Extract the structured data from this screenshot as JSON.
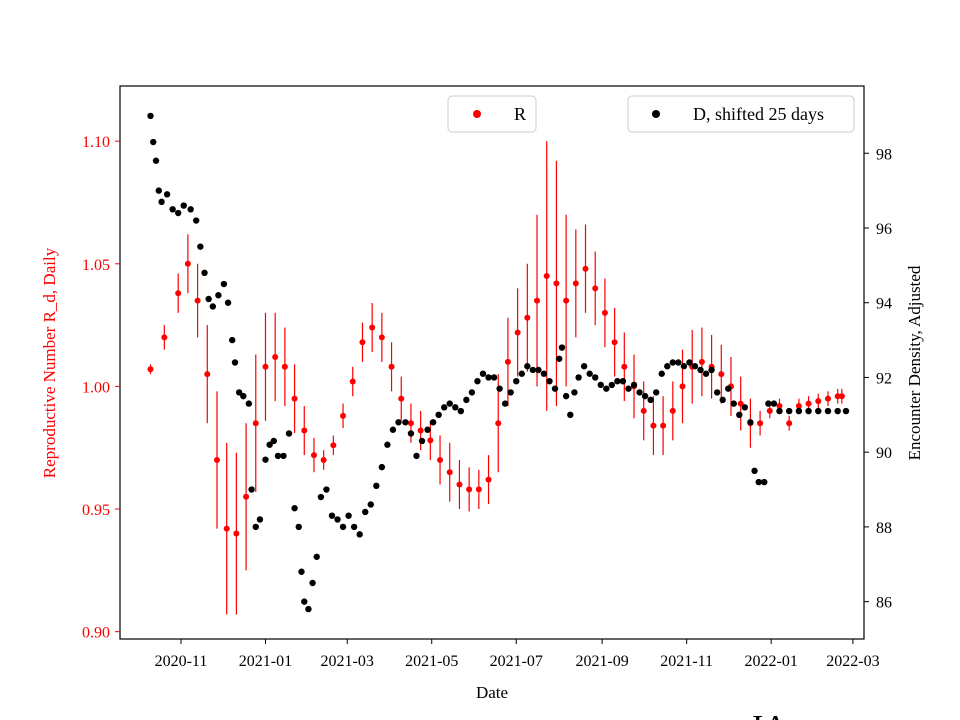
{
  "chart_data": {
    "type": "scatter",
    "xlabel": "Date",
    "x_ticks": [
      "2020-11",
      "2021-01",
      "2021-03",
      "2021-05",
      "2021-07",
      "2021-09",
      "2021-11",
      "2022-01",
      "2022-03"
    ],
    "x_range": [
      "2020-09-18",
      "2022-03-09"
    ],
    "left_axis": {
      "label": "Reproductive Number R_d, Daily",
      "color": "#ff0000",
      "ticks": [
        "0.90",
        "0.95",
        "1.00",
        "1.05",
        "1.10"
      ],
      "range": [
        0.897,
        1.1225
      ]
    },
    "right_axis": {
      "label": "Encounter Density, Adjusted",
      "color": "#000000",
      "ticks": [
        "86",
        "88",
        "90",
        "92",
        "94",
        "96",
        "98"
      ],
      "range": [
        85.0,
        99.8
      ]
    },
    "series": [
      {
        "name": "R",
        "axis": "left",
        "color": "#ff0000",
        "marker": "dot with error bars",
        "points": [
          [
            "2020-10-10",
            1.007,
            0.002
          ],
          [
            "2020-10-20",
            1.02,
            0.005
          ],
          [
            "2020-10-30",
            1.038,
            0.008
          ],
          [
            "2020-11-06",
            1.05,
            0.012
          ],
          [
            "2020-11-13",
            1.035,
            0.015
          ],
          [
            "2020-11-20",
            1.005,
            0.02
          ],
          [
            "2020-11-27",
            0.97,
            0.028
          ],
          [
            "2020-12-04",
            0.942,
            0.035
          ],
          [
            "2020-12-11",
            0.94,
            0.033
          ],
          [
            "2020-12-18",
            0.955,
            0.03
          ],
          [
            "2020-12-25",
            0.985,
            0.028
          ],
          [
            "2021-01-01",
            1.008,
            0.022
          ],
          [
            "2021-01-08",
            1.012,
            0.018
          ],
          [
            "2021-01-15",
            1.008,
            0.016
          ],
          [
            "2021-01-22",
            0.995,
            0.014
          ],
          [
            "2021-01-29",
            0.982,
            0.01
          ],
          [
            "2021-02-05",
            0.972,
            0.007
          ],
          [
            "2021-02-12",
            0.97,
            0.004
          ],
          [
            "2021-02-19",
            0.976,
            0.004
          ],
          [
            "2021-02-26",
            0.988,
            0.005
          ],
          [
            "2021-03-05",
            1.002,
            0.006
          ],
          [
            "2021-03-12",
            1.018,
            0.008
          ],
          [
            "2021-03-19",
            1.024,
            0.01
          ],
          [
            "2021-03-26",
            1.02,
            0.01
          ],
          [
            "2021-04-02",
            1.008,
            0.01
          ],
          [
            "2021-04-09",
            0.995,
            0.009
          ],
          [
            "2021-04-16",
            0.985,
            0.008
          ],
          [
            "2021-04-23",
            0.982,
            0.008
          ],
          [
            "2021-04-30",
            0.978,
            0.008
          ],
          [
            "2021-05-07",
            0.97,
            0.01
          ],
          [
            "2021-05-14",
            0.965,
            0.012
          ],
          [
            "2021-05-21",
            0.96,
            0.01
          ],
          [
            "2021-05-28",
            0.958,
            0.009
          ],
          [
            "2021-06-04",
            0.958,
            0.008
          ],
          [
            "2021-06-11",
            0.962,
            0.01
          ],
          [
            "2021-06-18",
            0.985,
            0.02
          ],
          [
            "2021-06-25",
            1.01,
            0.018
          ],
          [
            "2021-07-02",
            1.022,
            0.018
          ],
          [
            "2021-07-09",
            1.028,
            0.022
          ],
          [
            "2021-07-16",
            1.035,
            0.035
          ],
          [
            "2021-07-23",
            1.045,
            0.055
          ],
          [
            "2021-07-30",
            1.042,
            0.05
          ],
          [
            "2021-08-06",
            1.035,
            0.035
          ],
          [
            "2021-08-13",
            1.042,
            0.022
          ],
          [
            "2021-08-20",
            1.048,
            0.018
          ],
          [
            "2021-08-27",
            1.04,
            0.015
          ],
          [
            "2021-09-03",
            1.03,
            0.014
          ],
          [
            "2021-09-10",
            1.018,
            0.014
          ],
          [
            "2021-09-17",
            1.008,
            0.014
          ],
          [
            "2021-09-24",
            1.0,
            0.013
          ],
          [
            "2021-10-01",
            0.99,
            0.012
          ],
          [
            "2021-10-08",
            0.984,
            0.012
          ],
          [
            "2021-10-15",
            0.984,
            0.012
          ],
          [
            "2021-10-22",
            0.99,
            0.012
          ],
          [
            "2021-10-29",
            1.0,
            0.015
          ],
          [
            "2021-11-05",
            1.008,
            0.015
          ],
          [
            "2021-11-12",
            1.01,
            0.014
          ],
          [
            "2021-11-19",
            1.008,
            0.013
          ],
          [
            "2021-11-26",
            1.005,
            0.012
          ],
          [
            "2021-12-03",
            1.0,
            0.012
          ],
          [
            "2021-12-10",
            0.993,
            0.011
          ],
          [
            "2021-12-17",
            0.985,
            0.01
          ],
          [
            "2021-12-24",
            0.985,
            0.005
          ],
          [
            "2021-12-31",
            0.99,
            0.003
          ],
          [
            "2022-01-07",
            0.992,
            0.003
          ],
          [
            "2022-01-14",
            0.985,
            0.003
          ],
          [
            "2022-01-21",
            0.992,
            0.003
          ],
          [
            "2022-01-28",
            0.993,
            0.003
          ],
          [
            "2022-02-04",
            0.994,
            0.003
          ],
          [
            "2022-02-11",
            0.995,
            0.003
          ],
          [
            "2022-02-18",
            0.996,
            0.003
          ],
          [
            "2022-02-21",
            0.996,
            0.003
          ]
        ]
      },
      {
        "name": "D, shifted 25 days",
        "axis": "right",
        "color": "#000000",
        "marker": "dot",
        "points": [
          [
            "2020-10-10",
            99.0
          ],
          [
            "2020-10-12",
            98.3
          ],
          [
            "2020-10-14",
            97.8
          ],
          [
            "2020-10-16",
            97.0
          ],
          [
            "2020-10-18",
            96.7
          ],
          [
            "2020-10-22",
            96.9
          ],
          [
            "2020-10-26",
            96.5
          ],
          [
            "2020-10-30",
            96.4
          ],
          [
            "2020-11-03",
            96.6
          ],
          [
            "2020-11-08",
            96.5
          ],
          [
            "2020-11-12",
            96.2
          ],
          [
            "2020-11-15",
            95.5
          ],
          [
            "2020-11-18",
            94.8
          ],
          [
            "2020-11-21",
            94.1
          ],
          [
            "2020-11-24",
            93.9
          ],
          [
            "2020-11-28",
            94.2
          ],
          [
            "2020-12-02",
            94.5
          ],
          [
            "2020-12-05",
            94.0
          ],
          [
            "2020-12-08",
            93.0
          ],
          [
            "2020-12-10",
            92.4
          ],
          [
            "2020-12-13",
            91.6
          ],
          [
            "2020-12-16",
            91.5
          ],
          [
            "2020-12-20",
            91.3
          ],
          [
            "2020-12-22",
            89.0
          ],
          [
            "2020-12-25",
            88.0
          ],
          [
            "2020-12-28",
            88.2
          ],
          [
            "2021-01-01",
            89.8
          ],
          [
            "2021-01-04",
            90.2
          ],
          [
            "2021-01-07",
            90.3
          ],
          [
            "2021-01-10",
            89.9
          ],
          [
            "2021-01-14",
            89.9
          ],
          [
            "2021-01-18",
            90.5
          ],
          [
            "2021-01-22",
            88.5
          ],
          [
            "2021-01-25",
            88.0
          ],
          [
            "2021-01-27",
            86.8
          ],
          [
            "2021-01-29",
            86.0
          ],
          [
            "2021-02-01",
            85.8
          ],
          [
            "2021-02-04",
            86.5
          ],
          [
            "2021-02-07",
            87.2
          ],
          [
            "2021-02-10",
            88.8
          ],
          [
            "2021-02-14",
            89.0
          ],
          [
            "2021-02-18",
            88.3
          ],
          [
            "2021-02-22",
            88.2
          ],
          [
            "2021-02-26",
            88.0
          ],
          [
            "2021-03-02",
            88.3
          ],
          [
            "2021-03-06",
            88.0
          ],
          [
            "2021-03-10",
            87.8
          ],
          [
            "2021-03-14",
            88.4
          ],
          [
            "2021-03-18",
            88.6
          ],
          [
            "2021-03-22",
            89.1
          ],
          [
            "2021-03-26",
            89.6
          ],
          [
            "2021-03-30",
            90.2
          ],
          [
            "2021-04-03",
            90.6
          ],
          [
            "2021-04-07",
            90.8
          ],
          [
            "2021-04-12",
            90.8
          ],
          [
            "2021-04-16",
            90.5
          ],
          [
            "2021-04-20",
            89.9
          ],
          [
            "2021-04-24",
            90.3
          ],
          [
            "2021-04-28",
            90.6
          ],
          [
            "2021-05-02",
            90.8
          ],
          [
            "2021-05-06",
            91.0
          ],
          [
            "2021-05-10",
            91.2
          ],
          [
            "2021-05-14",
            91.3
          ],
          [
            "2021-05-18",
            91.2
          ],
          [
            "2021-05-22",
            91.1
          ],
          [
            "2021-05-26",
            91.4
          ],
          [
            "2021-05-30",
            91.6
          ],
          [
            "2021-06-03",
            91.9
          ],
          [
            "2021-06-07",
            92.1
          ],
          [
            "2021-06-11",
            92.0
          ],
          [
            "2021-06-15",
            92.0
          ],
          [
            "2021-06-19",
            91.7
          ],
          [
            "2021-06-23",
            91.3
          ],
          [
            "2021-06-27",
            91.6
          ],
          [
            "2021-07-01",
            91.9
          ],
          [
            "2021-07-05",
            92.1
          ],
          [
            "2021-07-09",
            92.3
          ],
          [
            "2021-07-13",
            92.2
          ],
          [
            "2021-07-17",
            92.2
          ],
          [
            "2021-07-21",
            92.1
          ],
          [
            "2021-07-25",
            91.9
          ],
          [
            "2021-07-29",
            91.7
          ],
          [
            "2021-08-01",
            92.5
          ],
          [
            "2021-08-03",
            92.8
          ],
          [
            "2021-08-06",
            91.5
          ],
          [
            "2021-08-09",
            91.0
          ],
          [
            "2021-08-12",
            91.6
          ],
          [
            "2021-08-15",
            92.0
          ],
          [
            "2021-08-19",
            92.3
          ],
          [
            "2021-08-23",
            92.1
          ],
          [
            "2021-08-27",
            92.0
          ],
          [
            "2021-08-31",
            91.8
          ],
          [
            "2021-09-04",
            91.7
          ],
          [
            "2021-09-08",
            91.8
          ],
          [
            "2021-09-12",
            91.9
          ],
          [
            "2021-09-16",
            91.9
          ],
          [
            "2021-09-20",
            91.7
          ],
          [
            "2021-09-24",
            91.8
          ],
          [
            "2021-09-28",
            91.6
          ],
          [
            "2021-10-02",
            91.5
          ],
          [
            "2021-10-06",
            91.4
          ],
          [
            "2021-10-10",
            91.6
          ],
          [
            "2021-10-14",
            92.1
          ],
          [
            "2021-10-18",
            92.3
          ],
          [
            "2021-10-22",
            92.4
          ],
          [
            "2021-10-26",
            92.4
          ],
          [
            "2021-10-30",
            92.3
          ],
          [
            "2021-11-03",
            92.4
          ],
          [
            "2021-11-07",
            92.3
          ],
          [
            "2021-11-11",
            92.2
          ],
          [
            "2021-11-15",
            92.1
          ],
          [
            "2021-11-19",
            92.2
          ],
          [
            "2021-11-23",
            91.6
          ],
          [
            "2021-11-27",
            91.4
          ],
          [
            "2021-12-01",
            91.7
          ],
          [
            "2021-12-05",
            91.3
          ],
          [
            "2021-12-09",
            91.0
          ],
          [
            "2021-12-13",
            91.2
          ],
          [
            "2021-12-17",
            90.8
          ],
          [
            "2021-12-20",
            89.5
          ],
          [
            "2021-12-23",
            89.2
          ],
          [
            "2021-12-27",
            89.2
          ],
          [
            "2021-12-30",
            91.3
          ],
          [
            "2022-01-03",
            91.3
          ],
          [
            "2022-01-07",
            91.1
          ],
          [
            "2022-01-14",
            91.1
          ],
          [
            "2022-01-21",
            91.1
          ],
          [
            "2022-01-28",
            91.1
          ],
          [
            "2022-02-04",
            91.1
          ],
          [
            "2022-02-11",
            91.1
          ],
          [
            "2022-02-18",
            91.1
          ],
          [
            "2022-02-24",
            91.1
          ]
        ]
      }
    ],
    "legend": [
      {
        "label": "R",
        "color": "#ff0000",
        "placement": "top-center"
      },
      {
        "label": "D, shifted 25 days",
        "color": "#000000",
        "placement": "top-right"
      }
    ],
    "grid": false,
    "corner_label": "IA"
  }
}
